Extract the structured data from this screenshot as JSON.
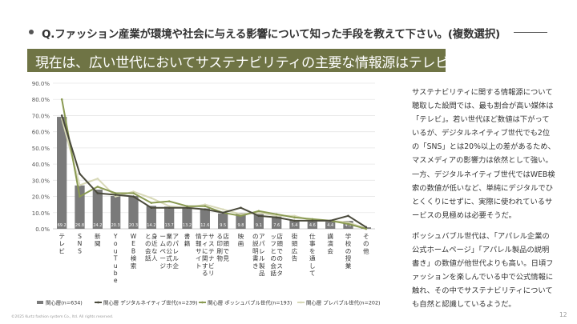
{
  "header": {
    "question": "Q.ファッション産業が環境や社会に与える影響について知った手段を教えて下さい。(複数選択)",
    "headline": "現在は、広い世代においてサステナビリティの主要な情報源はテレビ"
  },
  "colors": {
    "bar": "#7a7a7a",
    "digital_native": "#4a4a3c",
    "posh_bubble": "#8a9a52",
    "pre_bubble": "#d8d9b8",
    "headline_bg": "#6f7445"
  },
  "chart_data": {
    "type": "bar",
    "ylim": [
      0,
      90
    ],
    "yticks": [
      "0.0%",
      "10.0%",
      "20.0%",
      "30.0%",
      "40.0%",
      "50.0%",
      "60.0%",
      "70.0%",
      "80.0%",
      "90.0%"
    ],
    "categories": [
      "テレビ",
      "SNS",
      "新聞",
      "YouTube",
      "WEB検索",
      "身近な人との会話",
      "アパレル企業の公式ホームページ",
      "書籍",
      "サステナビリティに関する情報サイト",
      "店頭で見る印刷物",
      "映画",
      "アパレル製品の説明書き",
      "店頭でのスタッフとの会話",
      "街頭広告",
      "仕事を通して",
      "講演会",
      "学校の授業",
      "その他"
    ],
    "series": [
      {
        "name": "関心層(n=634)",
        "kind": "bar",
        "values": [
          69.2,
          26.8,
          24.2,
          20.3,
          20.3,
          14.2,
          13.7,
          13.2,
          12.6,
          9.5,
          9.8,
          9.1,
          7.6,
          5.4,
          4.6,
          4.4,
          4.9,
          0.9
        ],
        "labels": [
          "69.2",
          "26.8",
          "24.2",
          "20.3",
          "20.3",
          "14.2",
          "13.7",
          "13.2",
          "12.6",
          "9.5",
          "9.8",
          "9.1",
          "7.6",
          "5.4",
          "4.6",
          "4.4",
          "4.9",
          "0.9"
        ]
      },
      {
        "name": "関心層 デジタルネイティブ世代(n=239)",
        "kind": "line",
        "values": [
          70,
          34,
          22,
          21,
          20,
          13,
          13,
          13,
          12,
          10,
          13,
          8,
          7,
          5,
          5,
          5,
          8,
          1
        ]
      },
      {
        "name": "関心層 ポッシュバブル世代(n=193)",
        "kind": "line",
        "values": [
          80,
          20,
          26,
          22,
          22,
          16,
          17,
          14,
          14,
          10,
          8,
          11,
          9,
          7,
          6,
          5,
          3,
          0
        ]
      },
      {
        "name": "関心層 プレバブル世代(n=202)",
        "kind": "line",
        "values": [
          68,
          27,
          31,
          20,
          23,
          19,
          14,
          13,
          15,
          12,
          9,
          10,
          8,
          8,
          5,
          5,
          4,
          0
        ]
      }
    ]
  },
  "commentary": {
    "paragraph1": "サステナビリティに関する情報源について聴取した設問では、最も割合が高い媒体は「テレビ」。若い世代ほど数値は下がっているが、デジタルネイティブ世代でも2位の「SNS」とは20%以上の差があるため、マスメディアの影響力は依然として強い。",
    "paragraph2": "一方、デジタルネイティブ世代ではWEB検索の数値が低いなど、単純にデジタルでひとくくりにせずに、実際に使われているサービスの見極めは必要そうだ。",
    "paragraph3": "ポッシュバブル世代は、「アパレル企業の公式ホームページ」「アパレル製品の説明書き」の数値が他世代よりも高い。日頃ファッションを楽しんでいる中で公式情報に触れ、その中でサステナビリティについても自然と認識しているようだ。"
  },
  "footer": {
    "copyright": "©2025 Kurtz fashion system Co., ltd. All rights reserved.",
    "page_number": "12"
  }
}
